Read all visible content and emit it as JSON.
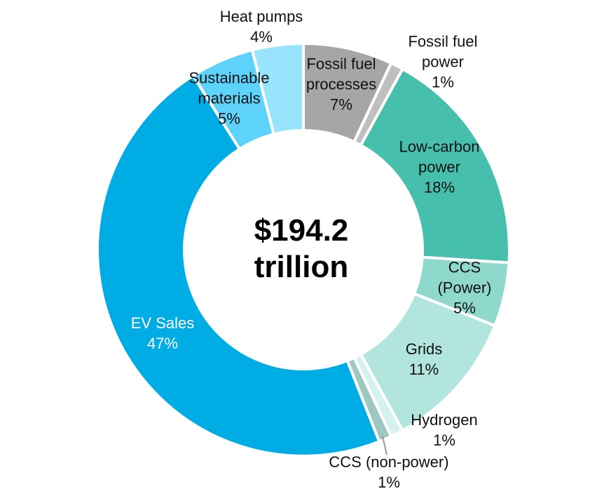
{
  "chart_data": {
    "type": "pie",
    "center_label": "$194.2 trillion",
    "categories": [
      "Fossil fuel processes",
      "Fossil fuel power",
      "Low-carbon power",
      "CCS (Power)",
      "Grids",
      "Hydrogen",
      "CCS (non-power)",
      "EV Sales",
      "Sustainable materials",
      "Heat pumps"
    ],
    "values": [
      7,
      1,
      18,
      5,
      11,
      1,
      1,
      47,
      5,
      4
    ],
    "value_labels": [
      "7%",
      "1%",
      "18%",
      "5%",
      "11%",
      "1%",
      "1%",
      "47%",
      "5%",
      "4%"
    ],
    "colors": [
      "#a6a6a6",
      "#bfbfbf",
      "#47bfad",
      "#8fd9cc",
      "#b3e5df",
      "#d6f2ef",
      "#9fc7c1",
      "#00ace4",
      "#5dd3fb",
      "#98e4fd"
    ]
  }
}
